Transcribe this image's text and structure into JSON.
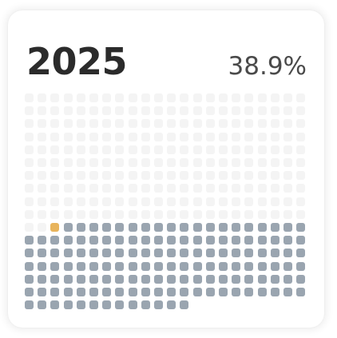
{
  "widget": {
    "year": "2025",
    "percent": "38.9%"
  },
  "days": {
    "total": 365,
    "elapsed": 142,
    "current_index": 142,
    "per_row": 22
  },
  "colors": {
    "elapsed": "#9aa5b0",
    "current": "#e8b45c",
    "remaining": "#f4f4f4"
  }
}
